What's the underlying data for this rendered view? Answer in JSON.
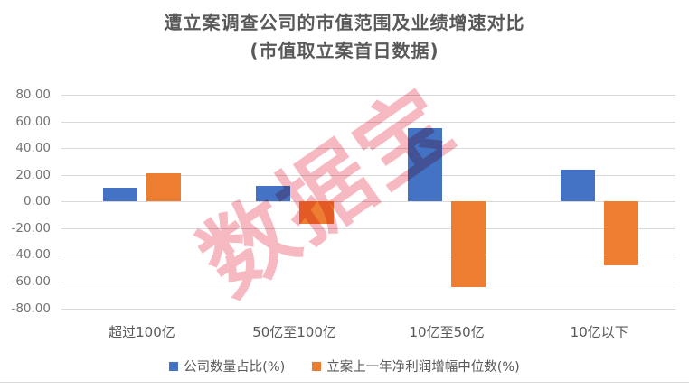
{
  "title": {
    "line1": "遭立案调查公司的市值范围及业绩增速对比",
    "line2": "(市值取立案首日数据)"
  },
  "watermark_text": "数据宝",
  "colors": {
    "series_company_ratio": "#4472C4",
    "series_profit_median": "#ED7D31",
    "gridline": "#D9D9D9",
    "title_text": "#595959",
    "axis_text": "#737373",
    "watermark": "#EE7D8E"
  },
  "y_axis": {
    "tick_labels": [
      "80.00",
      "60.00",
      "40.00",
      "20.00",
      "0.00",
      "-20.00",
      "-40.00",
      "-60.00",
      "-80.00"
    ],
    "max": 80,
    "min": -80,
    "step": 20
  },
  "chart_data": {
    "type": "bar",
    "title": "遭立案调查公司的市值范围及业绩增速对比",
    "subtitle": "(市值取立案首日数据)",
    "categories": [
      "超过100亿",
      "50亿至100亿",
      "10亿至50亿",
      "10亿以下"
    ],
    "series": [
      {
        "name": "公司数量占比(%)",
        "color": "#4472C4",
        "values": [
          10,
          12,
          55,
          24
        ]
      },
      {
        "name": "立案上一年净利润增幅中位数(%)",
        "color": "#ED7D31",
        "values": [
          21,
          -17,
          -64,
          -48
        ]
      }
    ],
    "xlabel": "",
    "ylabel": "",
    "ylim": [
      -80,
      80
    ],
    "grid": true,
    "legend_position": "bottom"
  }
}
